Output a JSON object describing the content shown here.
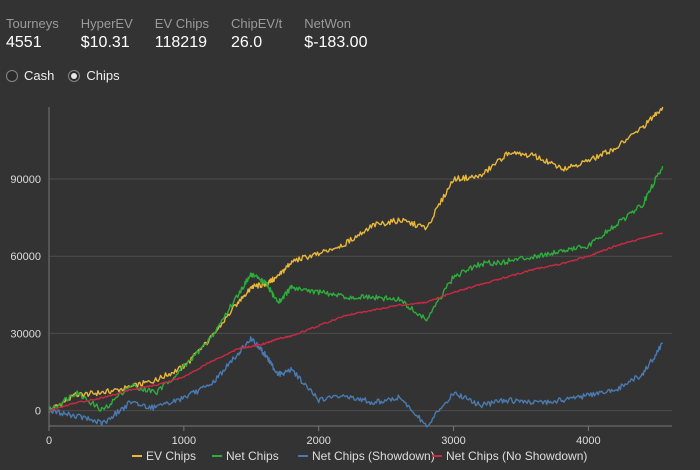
{
  "stats": [
    {
      "label": "Tourneys",
      "value": "4551"
    },
    {
      "label": "HyperEV",
      "value": "$10.31"
    },
    {
      "label": "EV Chips",
      "value": "118219"
    },
    {
      "label": "ChipEV/t",
      "value": "26.0"
    },
    {
      "label": "NetWon",
      "value": "$-183.00"
    }
  ],
  "modes": [
    {
      "label": "Cash",
      "selected": false
    },
    {
      "label": "Chips",
      "selected": true
    }
  ],
  "chart_data": {
    "type": "line",
    "xlim": [
      0,
      4620
    ],
    "ylim": [
      -6000,
      118000
    ],
    "x_ticks": [
      0,
      1000,
      2000,
      3000,
      4000
    ],
    "x_tick_labels": [
      "0",
      "1000",
      "2000",
      "3000",
      "4000"
    ],
    "y_ticks": [
      0,
      30000,
      60000,
      90000
    ],
    "y_tick_labels": [
      "0",
      "30000",
      "60000",
      "90000"
    ],
    "grid": "horizontal",
    "legend_position": "bottom",
    "series": [
      {
        "name": "EV Chips",
        "color": "#e8b83a",
        "x": [
          0,
          200,
          400,
          600,
          800,
          1000,
          1200,
          1400,
          1500,
          1600,
          1700,
          1800,
          2000,
          2200,
          2400,
          2600,
          2800,
          3000,
          3200,
          3400,
          3600,
          3800,
          4000,
          4200,
          4400,
          4551
        ],
        "y": [
          0,
          6000,
          7000,
          9000,
          12000,
          17000,
          28000,
          42000,
          48000,
          49000,
          52000,
          58000,
          61000,
          65000,
          72000,
          74000,
          71000,
          90000,
          91000,
          100000,
          99000,
          94000,
          97000,
          102000,
          110000,
          118000
        ]
      },
      {
        "name": "Net Chips",
        "color": "#2eac3c",
        "x": [
          0,
          200,
          400,
          600,
          800,
          1000,
          1200,
          1400,
          1500,
          1600,
          1700,
          1800,
          2000,
          2200,
          2400,
          2600,
          2800,
          3000,
          3200,
          3400,
          3600,
          3800,
          4000,
          4200,
          4400,
          4551
        ],
        "y": [
          0,
          7000,
          0,
          10000,
          7000,
          17000,
          28000,
          45000,
          53000,
          50000,
          42000,
          48000,
          46000,
          44000,
          44000,
          43000,
          35000,
          52000,
          57000,
          58000,
          60000,
          62000,
          64000,
          72000,
          80000,
          95000
        ]
      },
      {
        "name": "Net Chips (Showdown)",
        "color": "#4a7ab0",
        "x": [
          0,
          200,
          400,
          600,
          800,
          1000,
          1200,
          1400,
          1500,
          1600,
          1700,
          1800,
          2000,
          2200,
          2400,
          2600,
          2800,
          3000,
          3200,
          3400,
          3600,
          3800,
          4000,
          4200,
          4400,
          4551
        ],
        "y": [
          0,
          -2000,
          -5000,
          3000,
          1000,
          5000,
          10000,
          22000,
          28000,
          22000,
          14000,
          16000,
          4000,
          6000,
          3000,
          5000,
          -6000,
          7000,
          2000,
          4000,
          3000,
          4000,
          6000,
          8000,
          14000,
          26000
        ]
      },
      {
        "name": "Net Chips (No Showdown)",
        "color": "#c92a44",
        "x": [
          0,
          200,
          400,
          600,
          800,
          1000,
          1200,
          1400,
          1500,
          1600,
          1700,
          1800,
          2000,
          2200,
          2400,
          2600,
          2800,
          3000,
          3200,
          3400,
          3600,
          3800,
          4000,
          4200,
          4400,
          4551
        ],
        "y": [
          0,
          3000,
          5000,
          8000,
          10000,
          13000,
          19000,
          24000,
          25000,
          26000,
          28000,
          29000,
          33000,
          37000,
          39000,
          41000,
          42000,
          46000,
          49000,
          52000,
          55000,
          57000,
          60000,
          64000,
          67000,
          69000
        ]
      }
    ]
  }
}
